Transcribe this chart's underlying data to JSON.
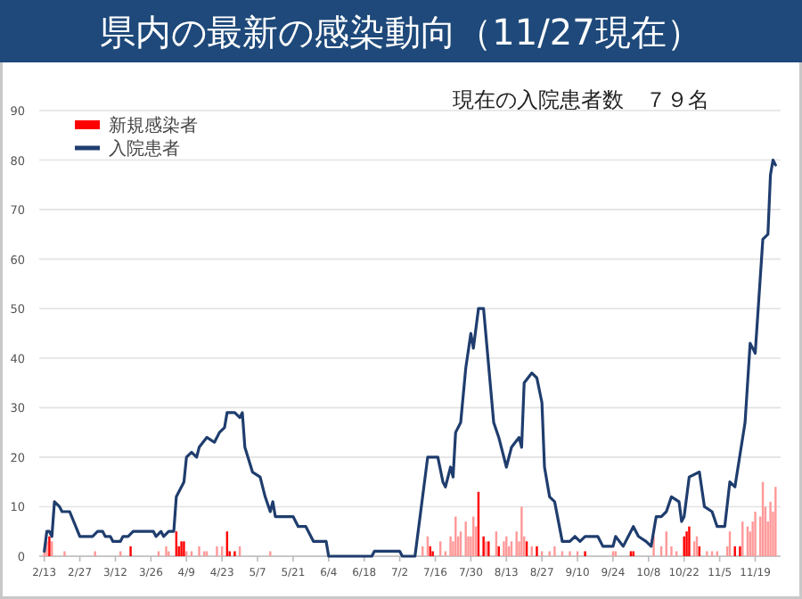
{
  "chart_data": {
    "type": "bar",
    "title": "県内の最新の感染動向（11/27現在）",
    "subtitle": "現在の入院患者数　７９名",
    "legend": "top left",
    "grid": "y",
    "xlim": [
      "--02-11",
      "--11-29"
    ],
    "xticks": [
      {
        "value": "--02-13",
        "label": "2/13"
      },
      {
        "value": "--02-27",
        "label": "2/27"
      },
      {
        "value": "--03-12",
        "label": "3/12"
      },
      {
        "value": "--03-26",
        "label": "3/26"
      },
      {
        "value": "--04-09",
        "label": "4/9"
      },
      {
        "value": "--04-23",
        "label": "4/23"
      },
      {
        "value": "--05-07",
        "label": "5/7"
      },
      {
        "value": "--05-21",
        "label": "5/21"
      },
      {
        "value": "--06-04",
        "label": "6/4"
      },
      {
        "value": "--06-18",
        "label": "6/18"
      },
      {
        "value": "--07-02",
        "label": "7/2"
      },
      {
        "value": "--07-16",
        "label": "7/16"
      },
      {
        "value": "--07-30",
        "label": "7/30"
      },
      {
        "value": "--08-13",
        "label": "8/13"
      },
      {
        "value": "--08-27",
        "label": "8/27"
      },
      {
        "value": "--09-10",
        "label": "9/10"
      },
      {
        "value": "--09-24",
        "label": "9/24"
      },
      {
        "value": "--10-08",
        "label": "10/8"
      },
      {
        "value": "--10-22",
        "label": "10/22"
      },
      {
        "value": "--11-05",
        "label": "11/5"
      },
      {
        "value": "--11-19",
        "label": "11/19"
      }
    ],
    "ylim": [
      0,
      90
    ],
    "yticks": [
      0,
      10,
      20,
      30,
      40,
      50,
      60,
      70,
      80,
      90
    ],
    "series": [
      {
        "name": "新規感染者",
        "color": "#ff0000",
        "x": [
          "--02-13",
          "--02-14",
          "--02-15",
          "--02-16",
          "--02-21",
          "--03-04",
          "--03-14",
          "--03-18",
          "--03-29",
          "--04-01",
          "--04-02",
          "--04-05",
          "--04-06",
          "--04-07",
          "--04-08",
          "--04-09",
          "--04-11",
          "--04-14",
          "--04-16",
          "--04-17",
          "--04-21",
          "--04-23",
          "--04-25",
          "--04-26",
          "--04-28",
          "--04-30",
          "--05-12",
          "--07-11",
          "--07-13",
          "--07-14",
          "--07-15",
          "--07-18",
          "--07-20",
          "--07-22",
          "--07-23",
          "--07-24",
          "--07-25",
          "--07-26",
          "--07-28",
          "--07-29",
          "--07-30",
          "--07-31",
          "--08-01",
          "--08-02",
          "--08-04",
          "--08-05",
          "--08-06",
          "--08-09",
          "--08-10",
          "--08-12",
          "--08-13",
          "--08-14",
          "--08-15",
          "--08-17",
          "--08-18",
          "--08-19",
          "--08-20",
          "--08-21",
          "--08-23",
          "--08-25",
          "--08-27",
          "--08-30",
          "--09-01",
          "--09-04",
          "--09-07",
          "--09-10",
          "--09-13",
          "--09-24",
          "--09-25",
          "--10-01",
          "--10-02",
          "--10-10",
          "--10-13",
          "--10-15",
          "--10-17",
          "--10-19",
          "--10-22",
          "--10-23",
          "--10-24",
          "--10-26",
          "--10-27",
          "--10-28",
          "--10-31",
          "--11-02",
          "--11-04",
          "--11-08",
          "--11-09",
          "--11-11",
          "--11-13",
          "--11-14",
          "--11-16",
          "--11-17",
          "--11-18",
          "--11-19",
          "--11-21",
          "--11-22",
          "--11-23",
          "--11-24",
          "--11-25",
          "--11-26",
          "--11-27"
        ],
        "values": [
          1,
          3,
          4,
          3,
          1,
          1,
          1,
          2,
          1,
          2,
          1,
          5,
          2,
          3,
          3,
          1,
          1,
          2,
          1,
          1,
          2,
          2,
          5,
          1,
          1,
          2,
          1,
          2,
          4,
          2,
          1,
          3,
          1,
          4,
          3,
          8,
          4,
          5,
          7,
          4,
          4,
          8,
          6,
          13,
          4,
          3,
          3,
          5,
          2,
          3,
          4,
          2,
          3,
          5,
          3,
          10,
          4,
          3,
          2,
          2,
          1,
          1,
          2,
          1,
          1,
          1,
          1,
          1,
          1,
          1,
          1,
          4,
          2,
          5,
          2,
          1,
          4,
          5,
          6,
          3,
          4,
          2,
          1,
          1,
          1,
          2,
          5,
          2,
          2,
          7,
          6,
          5,
          7,
          9,
          8,
          15,
          10,
          7,
          11,
          9,
          14
        ],
        "colors": [
          "#ff9999",
          "#ff9999",
          "#ff0000",
          "#ff9999",
          "#ff9999",
          "#ff9999",
          "#ff9999",
          "#ff0000",
          "#ff9999",
          "#ff9999",
          "#ff9999",
          "#ff0000",
          "#ff0000",
          "#ff0000",
          "#ff0000",
          "#ff9999",
          "#ff9999",
          "#ff9999",
          "#ff9999",
          "#ff9999",
          "#ff9999",
          "#ff9999",
          "#ff0000",
          "#ff0000",
          "#ff0000",
          "#ff9999",
          "#ff9999",
          "#ff9999",
          "#ff9999",
          "#ff0000",
          "#ff0000",
          "#ff9999",
          "#ff9999",
          "#ff9999",
          "#ff9999",
          "#ff9999",
          "#ff9999",
          "#ff9999",
          "#ff9999",
          "#ff9999",
          "#ff9999",
          "#ff9999",
          "#ff9999",
          "#ff0000",
          "#ff0000",
          "#ff9999",
          "#ff0000",
          "#ff9999",
          "#ff0000",
          "#ff9999",
          "#ff9999",
          "#ff9999",
          "#ff9999",
          "#ff9999",
          "#ff9999",
          "#ff9999",
          "#ff9999",
          "#ff0000",
          "#ff9999",
          "#ff0000",
          "#ff9999",
          "#ff9999",
          "#ff9999",
          "#ff9999",
          "#ff9999",
          "#ff9999",
          "#ff0000",
          "#ff9999",
          "#ff9999",
          "#ff0000",
          "#ff0000",
          "#ff9999",
          "#ff9999",
          "#ff9999",
          "#ff9999",
          "#ff9999",
          "#ff0000",
          "#ff0000",
          "#ff0000",
          "#ff9999",
          "#ff9999",
          "#ff0000",
          "#ff9999",
          "#ff9999",
          "#ff9999",
          "#ff9999",
          "#ff9999",
          "#ff0000",
          "#ff0000",
          "#ff9999",
          "#ff9999",
          "#ff9999",
          "#ff9999",
          "#ff9999",
          "#ff9999",
          "#ff9999",
          "#ff9999",
          "#ff9999",
          "#ff9999",
          "#ff9999",
          "#ff9999"
        ]
      },
      {
        "name": "入院患者",
        "type": "line",
        "color": "#1f3d6e",
        "x": [
          "--02-13",
          "--02-14",
          "--02-15",
          "--02-16",
          "--02-17",
          "--02-19",
          "--02-20",
          "--02-23",
          "--02-27",
          "--03-03",
          "--03-05",
          "--03-07",
          "--03-08",
          "--03-10",
          "--03-11",
          "--03-14",
          "--03-15",
          "--03-17",
          "--03-19",
          "--03-27",
          "--03-28",
          "--03-30",
          "--03-31",
          "--04-02",
          "--04-04",
          "--04-05",
          "--04-08",
          "--04-09",
          "--04-11",
          "--04-13",
          "--04-14",
          "--04-17",
          "--04-20",
          "--04-22",
          "--04-24",
          "--04-25",
          "--04-28",
          "--04-30",
          "--05-01",
          "--05-02",
          "--05-05",
          "--05-08",
          "--05-10",
          "--05-12",
          "--05-13",
          "--05-14",
          "--05-21",
          "--05-23",
          "--05-26",
          "--05-29",
          "--06-03",
          "--06-04",
          "--06-21",
          "--06-22",
          "--07-02",
          "--07-03",
          "--07-08",
          "--07-13",
          "--07-17",
          "--07-19",
          "--07-20",
          "--07-22",
          "--07-23",
          "--07-24",
          "--07-26",
          "--07-28",
          "--07-30",
          "--07-31",
          "--08-02",
          "--08-04",
          "--08-08",
          "--08-10",
          "--08-13",
          "--08-15",
          "--08-18",
          "--08-19",
          "--08-20",
          "--08-23",
          "--08-25",
          "--08-27",
          "--08-28",
          "--08-30",
          "--09-01",
          "--09-04",
          "--09-07",
          "--09-09",
          "--09-11",
          "--09-13",
          "--09-18",
          "--09-20",
          "--09-24",
          "--09-25",
          "--09-28",
          "--10-02",
          "--10-04",
          "--10-07",
          "--10-09",
          "--10-11",
          "--10-13",
          "--10-15",
          "--10-17",
          "--10-20",
          "--10-21",
          "--10-22",
          "--10-24",
          "--10-28",
          "--10-30",
          "--11-02",
          "--11-04",
          "--11-07",
          "--11-09",
          "--11-11",
          "--11-15",
          "--11-17",
          "--11-19",
          "--11-22",
          "--11-24",
          "--11-25",
          "--11-26",
          "--11-27"
        ],
        "values": [
          1,
          5,
          5,
          4,
          11,
          10,
          9,
          9,
          4,
          4,
          5,
          5,
          4,
          4,
          3,
          3,
          4,
          4,
          5,
          5,
          4,
          5,
          4,
          5,
          5,
          12,
          15,
          20,
          21,
          20,
          22,
          24,
          23,
          25,
          26,
          29,
          29,
          28,
          29,
          22,
          17,
          16,
          12,
          9,
          11,
          8,
          8,
          6,
          6,
          3,
          3,
          0,
          0,
          1,
          1,
          0,
          0,
          20,
          20,
          15,
          14,
          18,
          16,
          25,
          27,
          38,
          45,
          42,
          50,
          50,
          27,
          24,
          18,
          22,
          24,
          22,
          35,
          37,
          36,
          31,
          18,
          12,
          11,
          3,
          3,
          4,
          3,
          4,
          4,
          2,
          2,
          4,
          2,
          6,
          4,
          3,
          2,
          8,
          8,
          9,
          12,
          11,
          7,
          8,
          16,
          17,
          10,
          9,
          6,
          6,
          15,
          14,
          27,
          43,
          41,
          64,
          65,
          77,
          80,
          79
        ]
      }
    ]
  }
}
